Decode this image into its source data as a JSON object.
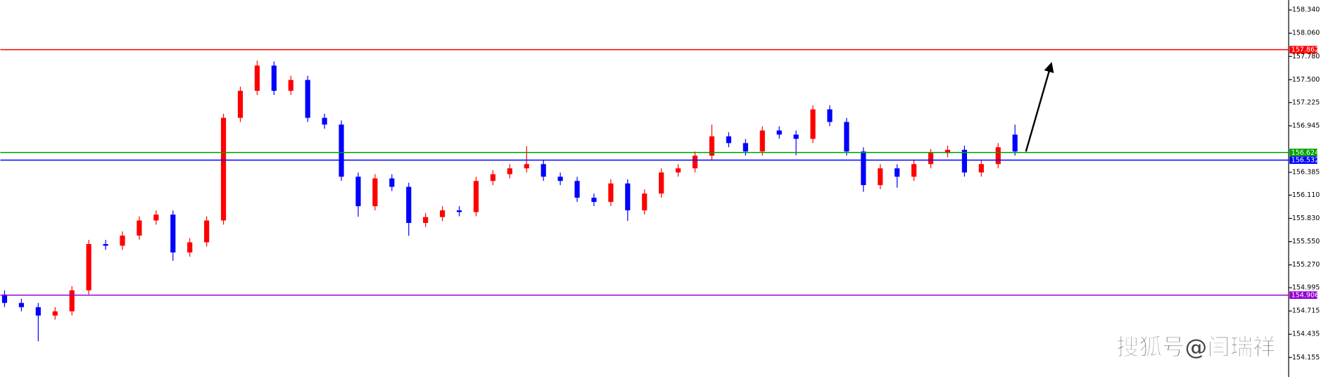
{
  "chart_data": {
    "type": "candlestick",
    "up_color": "#ff0000",
    "down_color": "#0000ff",
    "open": [
      154.913,
      154.812,
      154.761,
      154.66,
      154.711,
      154.964,
      155.521,
      155.501,
      155.623,
      155.805,
      155.876,
      155.42,
      155.542,
      155.805,
      157.041,
      157.366,
      157.67,
      157.366,
      157.497,
      157.041,
      156.96,
      156.332,
      155.977,
      156.312,
      156.21,
      155.775,
      155.846,
      155.927,
      155.906,
      156.281,
      156.362,
      156.433,
      156.484,
      156.332,
      156.281,
      156.079,
      156.028,
      156.251,
      155.927,
      156.129,
      156.383,
      156.433,
      156.585,
      156.818,
      156.737,
      156.636,
      156.889,
      156.839,
      156.788,
      157.143,
      156.991,
      156.636,
      156.231,
      156.433,
      156.332,
      156.484,
      156.616,
      156.656,
      156.383,
      156.484,
      156.839
    ],
    "high": [
      154.963,
      154.862,
      154.811,
      154.761,
      155.014,
      155.571,
      155.571,
      155.673,
      155.855,
      155.926,
      155.926,
      155.592,
      155.855,
      157.091,
      157.416,
      157.73,
      157.72,
      157.547,
      157.547,
      157.091,
      157.01,
      156.382,
      156.362,
      156.362,
      156.26,
      155.896,
      155.977,
      155.977,
      156.331,
      156.412,
      156.483,
      156.7,
      156.534,
      156.382,
      156.331,
      156.129,
      156.301,
      156.301,
      156.179,
      156.433,
      156.483,
      156.635,
      156.96,
      156.868,
      156.787,
      156.939,
      156.939,
      156.889,
      157.193,
      157.193,
      157.041,
      156.686,
      156.483,
      156.483,
      156.534,
      156.666,
      156.706,
      156.706,
      156.534,
      156.737,
      156.96
    ],
    "low": [
      154.762,
      154.711,
      154.35,
      154.61,
      154.661,
      154.914,
      155.451,
      155.451,
      155.573,
      155.755,
      155.32,
      155.37,
      155.492,
      155.755,
      156.991,
      157.316,
      157.316,
      157.316,
      156.991,
      156.91,
      156.282,
      155.85,
      155.927,
      156.16,
      155.62,
      155.725,
      155.796,
      155.856,
      155.856,
      156.231,
      156.312,
      156.383,
      156.282,
      156.231,
      156.029,
      155.978,
      155.978,
      155.8,
      155.877,
      156.079,
      156.333,
      156.383,
      156.535,
      156.687,
      156.586,
      156.586,
      156.789,
      156.59,
      156.738,
      156.941,
      156.586,
      156.15,
      156.181,
      156.2,
      156.282,
      156.434,
      156.566,
      156.333,
      156.333,
      156.434,
      156.586
    ],
    "close": [
      154.812,
      154.761,
      154.66,
      154.711,
      154.964,
      155.521,
      155.501,
      155.623,
      155.805,
      155.876,
      155.42,
      155.542,
      155.805,
      157.041,
      157.366,
      157.67,
      157.366,
      157.497,
      157.041,
      156.96,
      156.332,
      155.977,
      156.312,
      156.21,
      155.775,
      155.846,
      155.927,
      155.906,
      156.281,
      156.362,
      156.433,
      156.484,
      156.332,
      156.281,
      156.079,
      156.028,
      156.251,
      155.927,
      156.129,
      156.383,
      156.433,
      156.585,
      156.818,
      156.737,
      156.636,
      156.889,
      156.839,
      156.788,
      157.143,
      156.991,
      156.636,
      156.231,
      156.433,
      156.332,
      156.484,
      156.616,
      156.656,
      156.383,
      156.484,
      156.687,
      156.636
    ],
    "ylim": [
      153.92,
      158.46
    ],
    "yticks": [
      {
        "value": 158.34,
        "label": "158.340"
      },
      {
        "value": 158.06,
        "label": "158.060"
      },
      {
        "value": 157.78,
        "label": "157.780"
      },
      {
        "value": 157.5,
        "label": "157.500"
      },
      157.225,
      156.945,
      156.385,
      {
        "value": 156.11,
        "label": "156.110"
      },
      {
        "value": 155.83,
        "label": "155.830"
      },
      {
        "value": 155.55,
        "label": "155.550"
      },
      {
        "value": 155.27,
        "label": "155.270"
      },
      154.995,
      154.715,
      154.435,
      154.155
    ],
    "levels": [
      {
        "value": 157.862,
        "color": "#ff0000"
      },
      {
        "value": 156.624,
        "color": "#00a000"
      },
      {
        "value": 156.532,
        "color": "#0000ff"
      },
      {
        "value": 154.906,
        "color": "#9400d3"
      }
    ],
    "watermark": "搜狐号@闫瑞祥"
  }
}
